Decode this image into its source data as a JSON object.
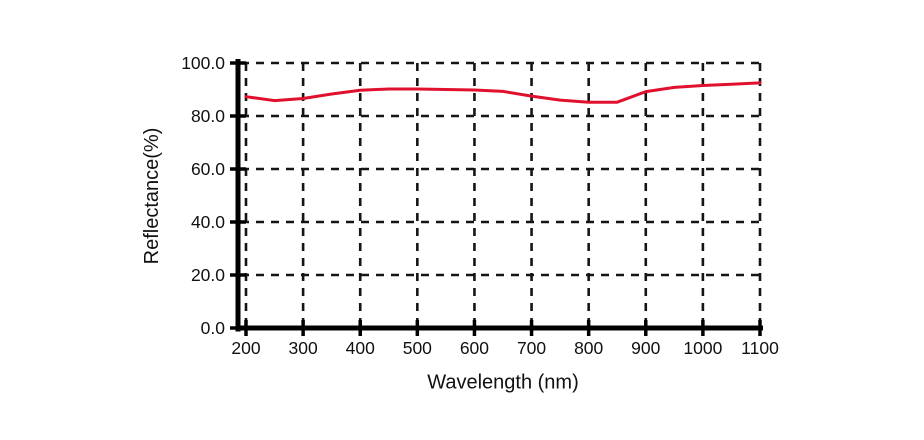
{
  "page": {
    "background_color": "#ffffff",
    "description": "Reflectance spectrum line chart"
  },
  "chart_data": {
    "type": "line",
    "title": "",
    "xlabel": "Wavelength (nm)",
    "ylabel": "Reflectance(%)",
    "xlim": [
      200,
      1100
    ],
    "ylim": [
      0,
      100
    ],
    "x_ticks": [
      200,
      300,
      400,
      500,
      600,
      700,
      800,
      900,
      1000,
      1100
    ],
    "x_tick_labels": [
      "200",
      "300",
      "400",
      "500",
      "600",
      "700",
      "800",
      "900",
      "1000",
      "1100"
    ],
    "y_ticks": [
      0,
      20,
      40,
      60,
      80,
      100
    ],
    "y_tick_labels": [
      "0.0",
      "20.0",
      "40.0",
      "60.0",
      "80.0",
      "100.0"
    ],
    "grid": "dashed-both-axes",
    "legend_position": "none",
    "axis_color": "#000000",
    "grid_color": "#151515",
    "series": [
      {
        "name": "reflectance",
        "color": "#e0112e",
        "x": [
          200,
          250,
          300,
          350,
          400,
          450,
          500,
          550,
          600,
          650,
          700,
          750,
          800,
          850,
          900,
          950,
          1000,
          1050,
          1100
        ],
        "y": [
          87.3,
          85.8,
          86.6,
          88.3,
          89.7,
          90.2,
          90.2,
          90.0,
          89.8,
          89.3,
          87.5,
          86.0,
          85.2,
          85.2,
          89.2,
          90.8,
          91.5,
          92.0,
          92.5
        ]
      }
    ]
  }
}
